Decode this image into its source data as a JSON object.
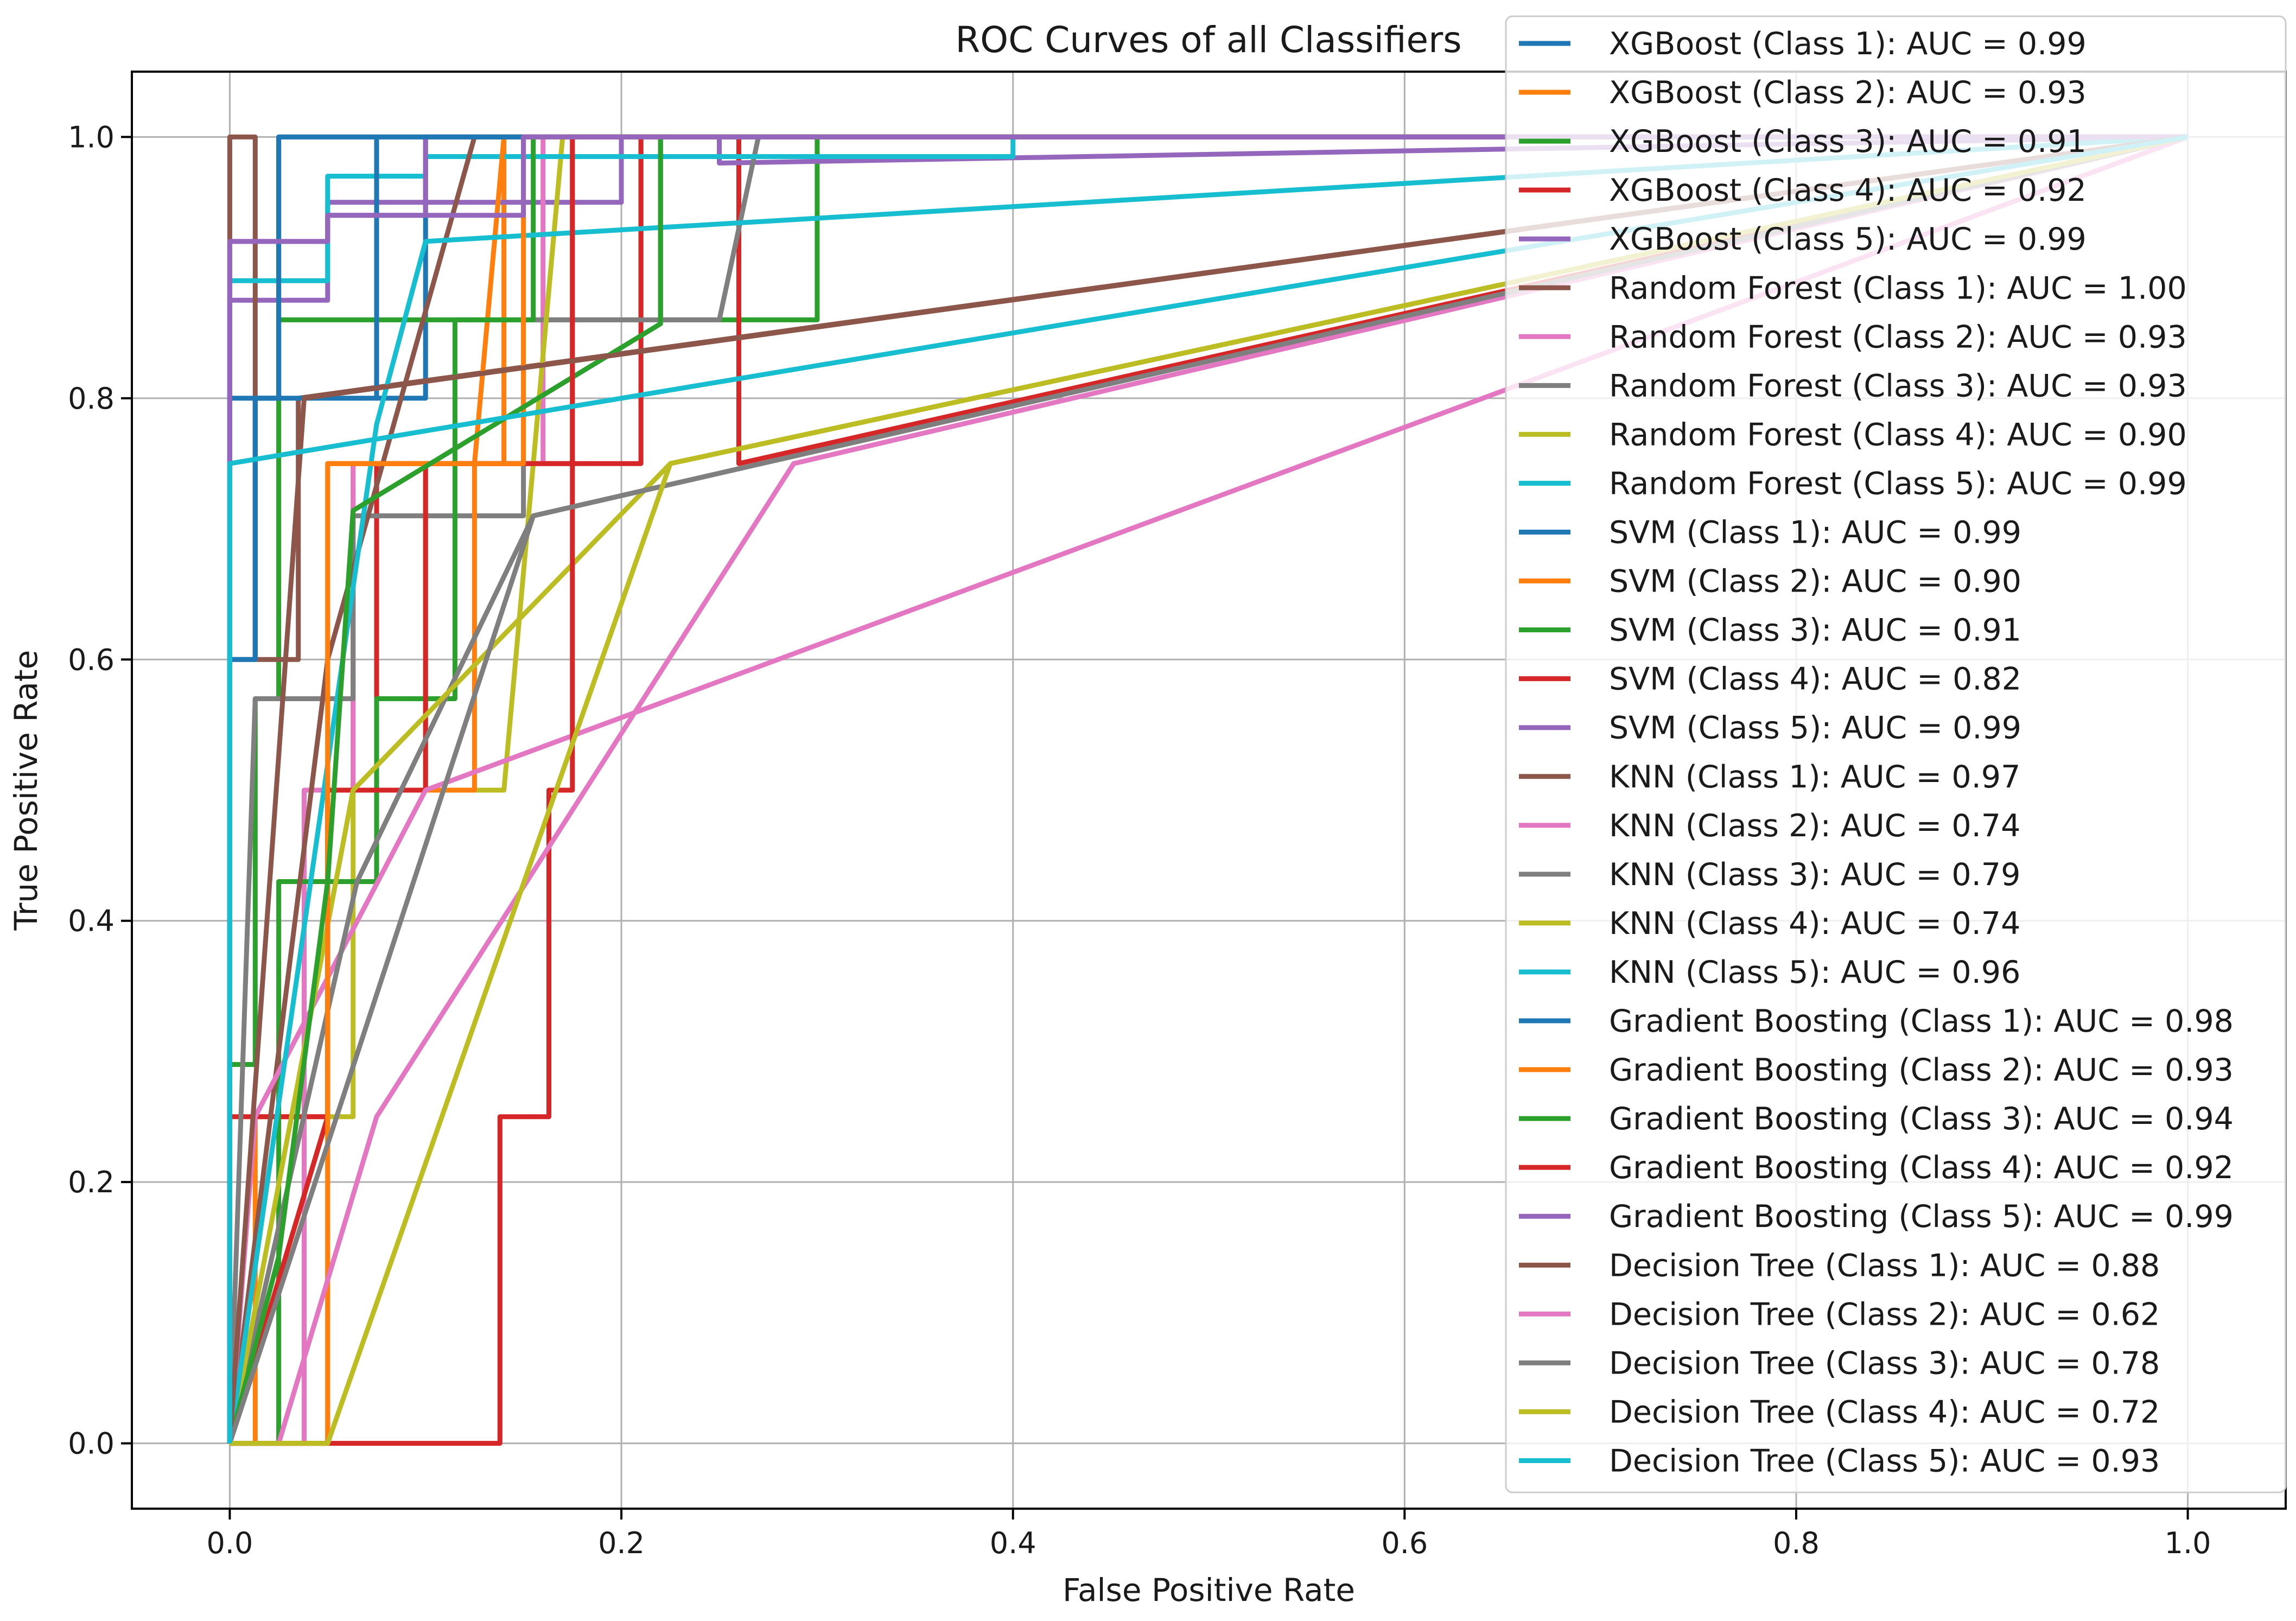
{
  "chart_data": {
    "type": "line",
    "title": "ROC Curves of all Classifiers",
    "xlabel": "False Positive Rate",
    "ylabel": "True Positive Rate",
    "xlim": [
      -0.05,
      1.05
    ],
    "ylim": [
      -0.05,
      1.05
    ],
    "xticks": [
      "0.0",
      "0.2",
      "0.4",
      "0.6",
      "0.8",
      "1.0"
    ],
    "yticks": [
      "0.0",
      "0.2",
      "0.4",
      "0.6",
      "0.8",
      "1.0"
    ],
    "grid": true,
    "legend_position": "upper-right",
    "series": [
      {
        "name": "XGBoost (Class 1): AUC = 0.99",
        "color": "#1f77b4",
        "x": [
          0,
          0,
          0.013,
          0.013,
          0.025,
          0.025,
          0.075,
          0.075,
          0.1,
          0.1,
          1.0
        ],
        "y": [
          0,
          0.6,
          0.6,
          0.8,
          0.8,
          1.0,
          1.0,
          0.8,
          0.8,
          1.0,
          1.0
        ]
      },
      {
        "name": "XGBoost (Class 2): AUC = 0.93",
        "color": "#ff7f0e",
        "x": [
          0,
          0.013,
          0.013,
          0.05,
          0.05,
          0.063,
          0.063,
          0.14,
          0.14,
          0.15,
          0.15,
          1.0
        ],
        "y": [
          0,
          0,
          0.25,
          0.25,
          0.5,
          0.5,
          0.75,
          0.75,
          1.0,
          1.0,
          1.0,
          1.0
        ]
      },
      {
        "name": "XGBoost (Class 3): AUC = 0.91",
        "color": "#2ca02c",
        "x": [
          0,
          0,
          0.013,
          0.013,
          0.025,
          0.025,
          0.065,
          0.065,
          0.21,
          0.21,
          0.22,
          0.22,
          0.3,
          0.3,
          1.0
        ],
        "y": [
          0,
          0.29,
          0.29,
          0.57,
          0.57,
          0.86,
          0.86,
          0.86,
          0.86,
          1.0,
          1.0,
          0.86,
          0.86,
          1.0,
          1.0
        ]
      },
      {
        "name": "XGBoost (Class 4): AUC = 0.92",
        "color": "#d62728",
        "x": [
          0,
          0,
          0.05,
          0.05,
          0.075,
          0.075,
          0.21,
          0.21,
          0.26,
          0.26,
          1.0
        ],
        "y": [
          0,
          0.25,
          0.25,
          0.5,
          0.5,
          0.75,
          0.75,
          1.0,
          1.0,
          0.75,
          1.0
        ]
      },
      {
        "name": "XGBoost (Class 5): AUC = 0.99",
        "color": "#9467bd",
        "x": [
          0,
          0,
          0.05,
          0.05,
          0.2,
          0.2,
          0.25,
          0.25,
          1.0
        ],
        "y": [
          0,
          0.875,
          0.875,
          0.95,
          0.95,
          1.0,
          1.0,
          0.98,
          1.0
        ]
      },
      {
        "name": "Random Forest (Class 1): AUC = 1.00",
        "color": "#8c564b",
        "x": [
          0,
          0,
          0.013,
          0.013,
          0.035,
          0.035,
          1.0
        ],
        "y": [
          0,
          1.0,
          1.0,
          0.6,
          0.6,
          0.8,
          1.0
        ]
      },
      {
        "name": "Random Forest (Class 2): AUC = 0.93",
        "color": "#e377c2",
        "x": [
          0,
          0.038,
          0.038,
          0.063,
          0.063,
          0.16,
          0.16,
          0.17,
          1.0
        ],
        "y": [
          0,
          0,
          0.5,
          0.5,
          0.75,
          0.75,
          1.0,
          1.0,
          1.0
        ]
      },
      {
        "name": "Random Forest (Class 3): AUC = 0.93",
        "color": "#7f7f7f",
        "x": [
          0,
          0.013,
          0.063,
          0.063,
          0.15,
          0.15,
          0.25,
          0.27,
          1.0
        ],
        "y": [
          0,
          0.57,
          0.57,
          0.71,
          0.71,
          0.86,
          0.86,
          1.0,
          1.0
        ]
      },
      {
        "name": "Random Forest (Class 4): AUC = 0.90",
        "color": "#bcbd22",
        "x": [
          0,
          0.05,
          0.063,
          0.063,
          0.088,
          0.088,
          0.14,
          0.17,
          1.0
        ],
        "y": [
          0,
          0.25,
          0.25,
          0.5,
          0.5,
          0.5,
          0.5,
          1.0,
          1.0
        ]
      },
      {
        "name": "Random Forest (Class 5): AUC = 0.99",
        "color": "#17becf",
        "x": [
          0,
          0,
          0.05,
          0.05,
          0.1,
          0.1,
          0.2,
          0.2,
          0.4,
          0.4,
          1.0
        ],
        "y": [
          0,
          0.89,
          0.89,
          0.97,
          0.97,
          0.985,
          0.985,
          0.985,
          0.985,
          1.0,
          1.0
        ]
      },
      {
        "name": "SVM (Class 1): AUC = 0.99",
        "color": "#1f77b4",
        "x": [
          0,
          0,
          0.013,
          0.013,
          0.075,
          0.075,
          1.0
        ],
        "y": [
          0,
          0.6,
          0.6,
          0.8,
          0.8,
          1.0,
          1.0
        ]
      },
      {
        "name": "SVM (Class 2): AUC = 0.90",
        "color": "#ff7f0e",
        "x": [
          0,
          0.05,
          0.05,
          0.1,
          0.1,
          0.125,
          0.125,
          0.14,
          1.0
        ],
        "y": [
          0,
          0,
          0.75,
          0.75,
          0.5,
          0.5,
          0.75,
          1.0,
          1.0
        ]
      },
      {
        "name": "SVM (Class 3): AUC = 0.91",
        "color": "#2ca02c",
        "x": [
          0,
          0.025,
          0.025,
          0.075,
          0.075,
          0.115,
          0.115,
          0.155,
          0.155,
          1.0
        ],
        "y": [
          0,
          0,
          0.43,
          0.43,
          0.57,
          0.57,
          0.86,
          0.86,
          1.0,
          1.0
        ]
      },
      {
        "name": "SVM (Class 4): AUC = 0.82",
        "color": "#d62728",
        "x": [
          0,
          0.05,
          0.05,
          0.1,
          0.1,
          0.175,
          0.175,
          1.0
        ],
        "y": [
          0,
          0.25,
          0.5,
          0.5,
          0.75,
          0.75,
          1.0,
          1.0
        ]
      },
      {
        "name": "SVM (Class 5): AUC = 0.99",
        "color": "#9467bd",
        "x": [
          0,
          0,
          0.05,
          0.05,
          0.1,
          0.1,
          1.0
        ],
        "y": [
          0,
          0.92,
          0.92,
          0.94,
          0.94,
          1.0,
          1.0
        ]
      },
      {
        "name": "KNN (Class 1): AUC = 0.97",
        "color": "#8c564b",
        "x": [
          0,
          0.05,
          0.125,
          1.0
        ],
        "y": [
          0,
          0.6,
          1.0,
          1.0
        ]
      },
      {
        "name": "KNN (Class 2): AUC = 0.74",
        "color": "#e377c2",
        "x": [
          0,
          0.013,
          0.1,
          1.0
        ],
        "y": [
          0,
          0.25,
          0.5,
          1.0
        ]
      },
      {
        "name": "KNN (Class 3): AUC = 0.79",
        "color": "#7f7f7f",
        "x": [
          0,
          0.065,
          0.155,
          1.0
        ],
        "y": [
          0,
          0.43,
          0.71,
          1.0
        ]
      },
      {
        "name": "KNN (Class 4): AUC = 0.74",
        "color": "#bcbd22",
        "x": [
          0,
          0.063,
          0.225,
          1.0
        ],
        "y": [
          0,
          0.5,
          0.75,
          1.0
        ]
      },
      {
        "name": "KNN (Class 5): AUC = 0.96",
        "color": "#17becf",
        "x": [
          0,
          0.075,
          0.1,
          1.0
        ],
        "y": [
          0,
          0.78,
          0.92,
          1.0
        ]
      },
      {
        "name": "Gradient Boosting (Class 1): AUC = 0.98",
        "color": "#1f77b4",
        "x": [
          0,
          0,
          0.025,
          0.025,
          1.0
        ],
        "y": [
          0,
          0.8,
          0.8,
          1.0,
          1.0
        ]
      },
      {
        "name": "Gradient Boosting (Class 2): AUC = 0.93",
        "color": "#ff7f0e",
        "x": [
          0,
          0.05,
          0.05,
          0.15,
          0.15,
          1.0
        ],
        "y": [
          0,
          0,
          0.75,
          0.75,
          1.0,
          1.0
        ]
      },
      {
        "name": "Gradient Boosting (Class 3): AUC = 0.94",
        "color": "#2ca02c",
        "x": [
          0,
          0.025,
          0.025,
          0.05,
          0.05,
          0.063,
          0.063,
          0.22,
          0.22,
          1.0
        ],
        "y": [
          0,
          0.143,
          0.143,
          0.43,
          0.43,
          0.714,
          0.714,
          0.857,
          1.0,
          1.0
        ]
      },
      {
        "name": "Gradient Boosting (Class 4): AUC = 0.92",
        "color": "#d62728",
        "x": [
          0,
          0.05,
          0.138,
          0.138,
          0.163,
          0.163,
          0.175,
          0.175,
          1.0
        ],
        "y": [
          0,
          0,
          0,
          0.25,
          0.25,
          0.5,
          0.5,
          1.0,
          1.0
        ]
      },
      {
        "name": "Gradient Boosting (Class 5): AUC = 0.99",
        "color": "#9467bd",
        "x": [
          0,
          0,
          0.05,
          0.05,
          0.15,
          0.15,
          1.0
        ],
        "y": [
          0,
          0.92,
          0.92,
          0.94,
          0.94,
          1.0,
          1.0
        ]
      },
      {
        "name": "Decision Tree (Class 1): AUC = 0.88",
        "color": "#8c564b",
        "x": [
          0,
          0.038,
          1.0
        ],
        "y": [
          0,
          0.8,
          1.0
        ]
      },
      {
        "name": "Decision Tree (Class 2): AUC = 0.62",
        "color": "#e377c2",
        "x": [
          0,
          0.025,
          0.075,
          0.288,
          1.0
        ],
        "y": [
          0,
          0,
          0.25,
          0.75,
          1.0
        ]
      },
      {
        "name": "Decision Tree (Class 3): AUC = 0.78",
        "color": "#7f7f7f",
        "x": [
          0,
          0.155,
          1.0
        ],
        "y": [
          0,
          0.71,
          1.0
        ]
      },
      {
        "name": "Decision Tree (Class 4): AUC = 0.72",
        "color": "#bcbd22",
        "x": [
          0,
          0.05,
          0.225,
          1.0
        ],
        "y": [
          0,
          0,
          0.75,
          1.0
        ]
      },
      {
        "name": "Decision Tree (Class 5): AUC = 0.93",
        "color": "#17becf",
        "x": [
          0,
          0,
          1.0
        ],
        "y": [
          0,
          0.75,
          1.0
        ]
      }
    ]
  }
}
